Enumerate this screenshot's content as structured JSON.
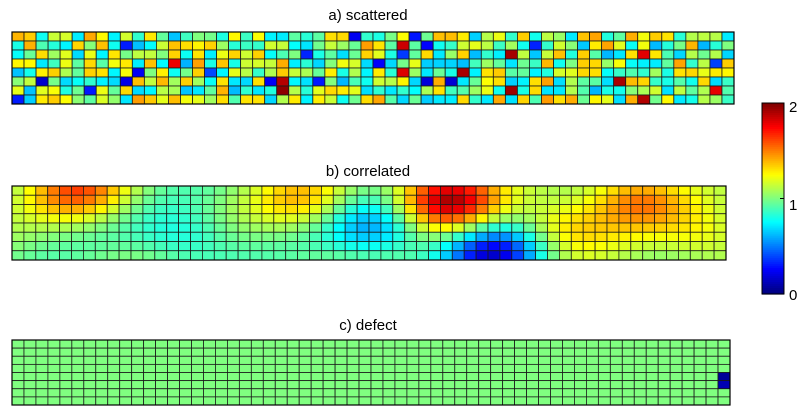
{
  "chart_data": [
    {
      "type": "heatmap",
      "title": "a)  scattered",
      "rows": 8,
      "cols": 60,
      "field": "random",
      "range": [
        0,
        2
      ],
      "notes": "each cell independently random, mostly 0.7-1.3 with occasional extremes"
    },
    {
      "type": "heatmap",
      "title": "b)  correlated",
      "rows": 8,
      "cols": 60,
      "field": "smooth",
      "range": [
        0,
        2
      ],
      "features": [
        {
          "col": 5,
          "row": 0,
          "value": 1.55
        },
        {
          "col": 14,
          "row": 5,
          "value": 0.75
        },
        {
          "col": 24,
          "row": 1,
          "value": 1.35
        },
        {
          "col": 30,
          "row": 4,
          "value": 0.55
        },
        {
          "col": 36,
          "row": 1,
          "value": 1.9
        },
        {
          "col": 40,
          "row": 7,
          "value": 0.2
        },
        {
          "col": 46,
          "row": 4,
          "value": 1.35
        },
        {
          "col": 52,
          "row": 1,
          "value": 1.5
        },
        {
          "col": 58,
          "row": 5,
          "value": 1.25
        }
      ]
    },
    {
      "type": "heatmap",
      "title": "c)  defect",
      "rows": 8,
      "cols": 60,
      "field": "uniform",
      "base_value": 1.0,
      "range": [
        0,
        2
      ],
      "defects": [
        {
          "col": 59,
          "row": 4,
          "value": 0.05
        },
        {
          "col": 59,
          "row": 5,
          "value": 0.1
        }
      ]
    }
  ],
  "colorbar": {
    "colormap": "jet",
    "min": 0,
    "max": 2,
    "ticks": [
      "0",
      "1",
      "2"
    ]
  }
}
